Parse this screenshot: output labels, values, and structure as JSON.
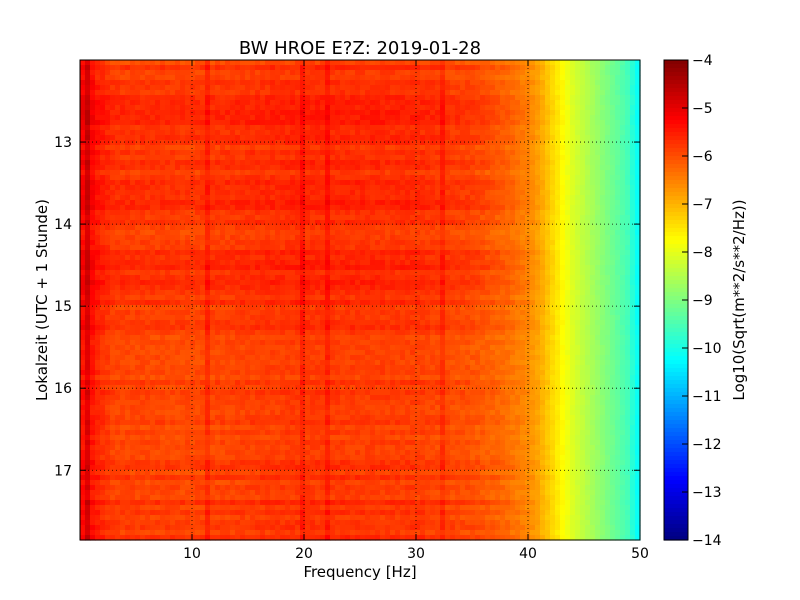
{
  "chart_data": {
    "type": "heatmap",
    "title": "BW HROE E?Z: 2019-01-28",
    "xlabel": "Frequency [Hz]",
    "ylabel": "Lokalzeit (UTC + 1 Stunde)",
    "xlim": [
      0,
      50
    ],
    "ylim": [
      17.85,
      12.0
    ],
    "y_inverted": true,
    "x_ticks": [
      10,
      20,
      30,
      40,
      50
    ],
    "x_tick_labels": [
      "10",
      "20",
      "30",
      "40",
      "50"
    ],
    "y_ticks": [
      13,
      14,
      15,
      16,
      17
    ],
    "y_tick_labels": [
      "13",
      "14",
      "15",
      "16",
      "17"
    ],
    "grid": true,
    "colormap": "jet",
    "colorbar": {
      "label": "Log10(Sqrt(m**2/s**2/Hz))",
      "min": -14,
      "max": -4,
      "ticks": [
        -4,
        -5,
        -6,
        -7,
        -8,
        -9,
        -10,
        -11,
        -12,
        -13,
        -14
      ],
      "tick_labels": [
        "−4",
        "−5",
        "−6",
        "−7",
        "−8",
        "−9",
        "−10",
        "−11",
        "−12",
        "−13",
        "−14"
      ]
    },
    "frequency_profile": {
      "frequency_hz": [
        0,
        0.5,
        1,
        1.5,
        3,
        10,
        20,
        30,
        35,
        38,
        40,
        41,
        42,
        43,
        44,
        45,
        46,
        47,
        48,
        49,
        49.5,
        50
      ],
      "log10_amplitude": [
        -5.6,
        -5.1,
        -5.4,
        -5.6,
        -5.9,
        -5.95,
        -5.8,
        -5.85,
        -6.05,
        -6.3,
        -6.6,
        -6.9,
        -7.3,
        -7.7,
        -8.1,
        -8.4,
        -8.7,
        -9.0,
        -9.3,
        -9.6,
        -10.0,
        -10.3
      ]
    },
    "time_modulation": {
      "time_hours": [
        12.0,
        12.3,
        12.65,
        13.2,
        13.75,
        14.1,
        14.7,
        14.85,
        15.5,
        16.5,
        17.0,
        17.5,
        17.85
      ],
      "log10_offset": [
        0.05,
        0.1,
        0.3,
        0.1,
        0.2,
        0.05,
        0.3,
        0.15,
        0.0,
        -0.05,
        0.05,
        0.1,
        0.1
      ]
    },
    "bright_lines_hz": [
      0.8,
      11.5,
      20.0,
      22.1,
      32.4
    ]
  }
}
